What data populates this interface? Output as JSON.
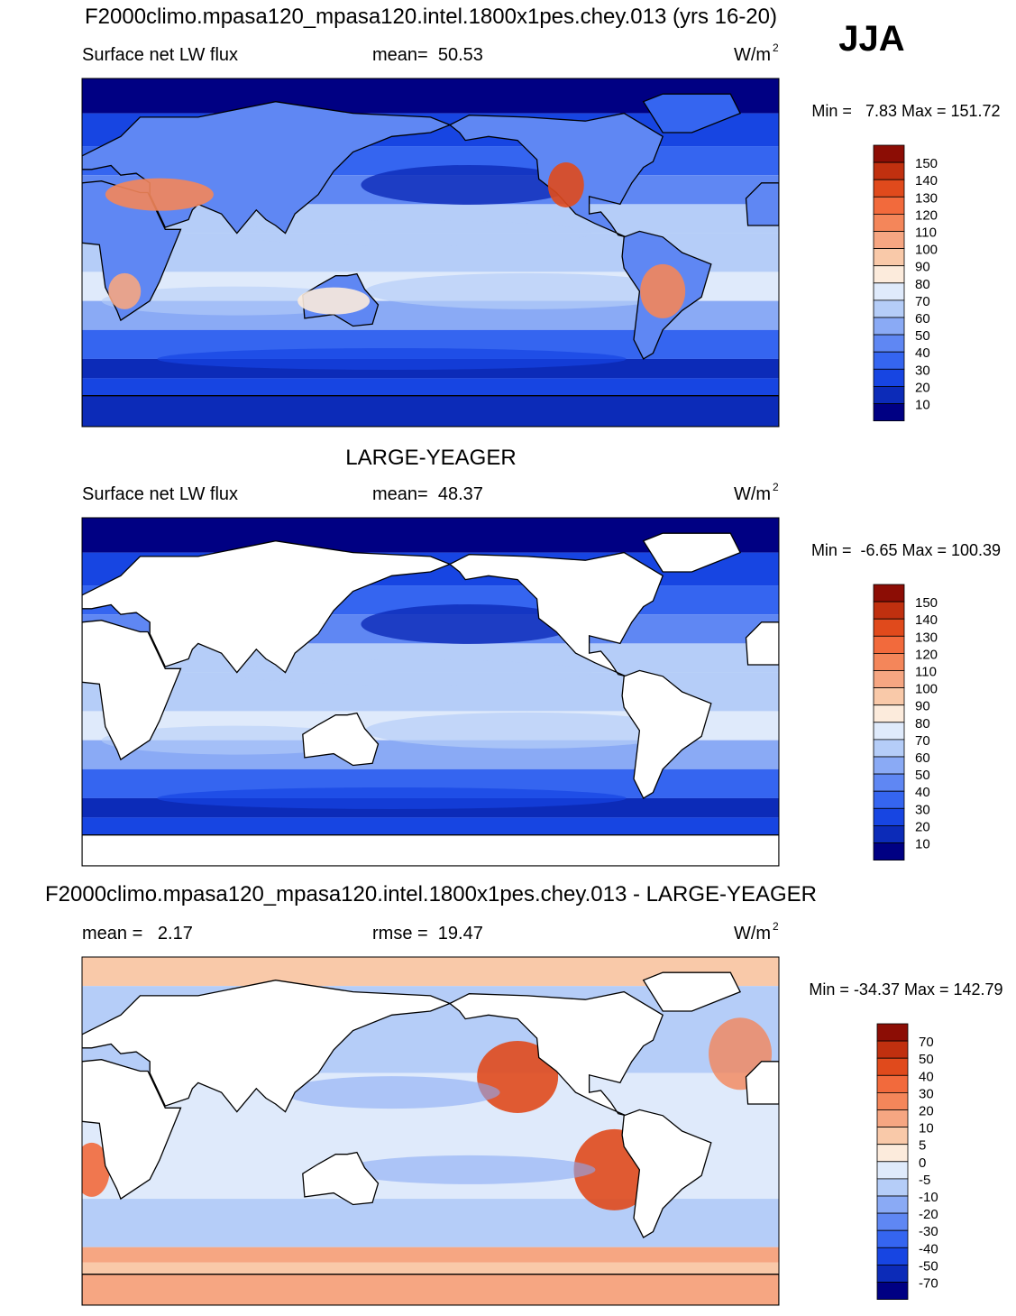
{
  "season": "JJA",
  "panels": [
    {
      "title": "F2000climo.mpasa120_mpasa120.intel.1800x1pes.chey.013 (yrs 16-20)",
      "left": "Surface net LW flux",
      "center": "mean=  50.53",
      "units": "W/m",
      "units_power": "2",
      "range": "Min =   7.83 Max = 151.72",
      "colorbar": {
        "labels": [
          "150",
          "140",
          "130",
          "120",
          "110",
          "100",
          "90",
          "80",
          "70",
          "60",
          "50",
          "40",
          "30",
          "20",
          "10"
        ],
        "colors": [
          "#8c0d05",
          "#c0300f",
          "#e04a1c",
          "#f26a3c",
          "#f4865a",
          "#f6a682",
          "#f9c9a9",
          "#fcebdc",
          "#dfeafb",
          "#b5cdf8",
          "#8aaaf5",
          "#5f87f3",
          "#3565f0",
          "#1745e2",
          "#0c2bb8",
          "#000083"
        ]
      }
    },
    {
      "title": "LARGE-YEAGER",
      "left": "Surface net LW flux",
      "center": "mean=  48.37",
      "units": "W/m",
      "units_power": "2",
      "range": "Min =  -6.65 Max = 100.39",
      "colorbar": {
        "labels": [
          "150",
          "140",
          "130",
          "120",
          "110",
          "100",
          "90",
          "80",
          "70",
          "60",
          "50",
          "40",
          "30",
          "20",
          "10"
        ],
        "colors": [
          "#8c0d05",
          "#c0300f",
          "#e04a1c",
          "#f26a3c",
          "#f4865a",
          "#f6a682",
          "#f9c9a9",
          "#fcebdc",
          "#dfeafb",
          "#b5cdf8",
          "#8aaaf5",
          "#5f87f3",
          "#3565f0",
          "#1745e2",
          "#0c2bb8",
          "#000083"
        ]
      }
    },
    {
      "title": "F2000climo.mpasa120_mpasa120.intel.1800x1pes.chey.013 - LARGE-YEAGER",
      "left": "mean =   2.17",
      "center": "rmse =  19.47",
      "units": "W/m",
      "units_power": "2",
      "range": "Min = -34.37 Max = 142.79",
      "colorbar": {
        "labels": [
          "70",
          "50",
          "40",
          "30",
          "20",
          "10",
          "5",
          "0",
          "-5",
          "-10",
          "-20",
          "-30",
          "-40",
          "-50",
          "-70"
        ],
        "colors": [
          "#8c0d05",
          "#c0300f",
          "#e04a1c",
          "#f26a3c",
          "#f4865a",
          "#f6a682",
          "#f9c9a9",
          "#fcebdc",
          "#dfeafb",
          "#b5cdf8",
          "#8aaaf5",
          "#5f87f3",
          "#3565f0",
          "#1745e2",
          "#0c2bb8",
          "#000083"
        ]
      }
    }
  ]
}
